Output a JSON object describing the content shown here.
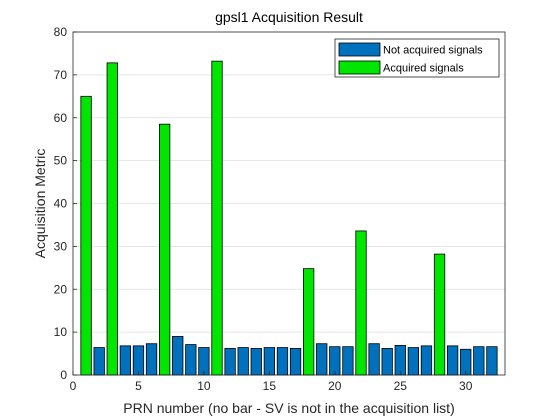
{
  "chart_data": {
    "type": "bar",
    "title": "gpsl1 Acquisition Result",
    "xlabel": "PRN number (no bar - SV is not in the acquisition list)",
    "ylabel": "Acquisition Metric",
    "xlim": [
      0,
      33
    ],
    "ylim": [
      0,
      80
    ],
    "xticks": [
      0,
      5,
      10,
      15,
      20,
      25,
      30
    ],
    "yticks": [
      0,
      10,
      20,
      30,
      40,
      50,
      60,
      70,
      80
    ],
    "grid": "horizontal",
    "legend_position": "top-right",
    "series": [
      {
        "name": "Not acquired signals",
        "color": "#0072BD",
        "x": [
          2,
          4,
          5,
          6,
          8,
          9,
          10,
          12,
          13,
          14,
          15,
          16,
          17,
          19,
          20,
          21,
          23,
          24,
          25,
          26,
          27,
          29,
          30,
          31,
          32
        ],
        "values": [
          6.4,
          6.8,
          6.8,
          7.3,
          9.0,
          7.1,
          6.4,
          6.2,
          6.4,
          6.2,
          6.4,
          6.4,
          6.2,
          7.3,
          6.6,
          6.6,
          7.3,
          6.2,
          6.9,
          6.4,
          6.8,
          6.8,
          6.0,
          6.6,
          6.6
        ]
      },
      {
        "name": "Acquired signals",
        "color": "#00E600",
        "x": [
          1,
          3,
          7,
          11,
          18,
          22,
          28
        ],
        "values": [
          65.0,
          72.8,
          58.5,
          73.2,
          24.8,
          33.6,
          28.2
        ]
      }
    ]
  }
}
